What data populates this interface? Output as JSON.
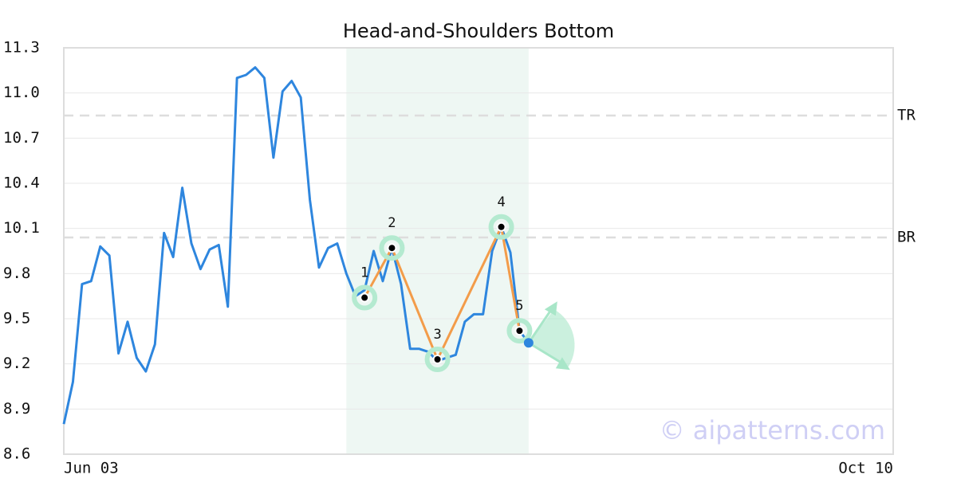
{
  "chart_data": {
    "type": "line",
    "title": "Head-and-Shoulders Bottom",
    "x": [
      0,
      1,
      2,
      3,
      4,
      5,
      6,
      7,
      8,
      9,
      10,
      11,
      12,
      13,
      14,
      15,
      16,
      17,
      18,
      19,
      20,
      21,
      22,
      23,
      24,
      25,
      26,
      27,
      28,
      29,
      30,
      31,
      32,
      33,
      34,
      35,
      36,
      37,
      38,
      39,
      40,
      41,
      42,
      43,
      44,
      45,
      46,
      47,
      48,
      49,
      50,
      51
    ],
    "series": [
      {
        "color": "#2e86de",
        "values": [
          8.8,
          9.08,
          9.73,
          9.75,
          9.98,
          9.92,
          9.27,
          9.48,
          9.24,
          9.15,
          9.33,
          10.07,
          9.91,
          10.37,
          10.0,
          9.83,
          9.96,
          9.99,
          9.58,
          11.1,
          11.12,
          11.17,
          11.1,
          10.57,
          11.01,
          11.08,
          10.97,
          10.29,
          9.84,
          9.97,
          10.0,
          9.8,
          9.65,
          9.69,
          9.95,
          9.75,
          9.97,
          9.73,
          9.3,
          9.3,
          9.28,
          9.22,
          9.24,
          9.26,
          9.48,
          9.53,
          9.53,
          9.95,
          10.11,
          9.94,
          9.42,
          9.34
        ]
      }
    ],
    "pattern": {
      "labels": [
        "1",
        "2",
        "3",
        "4",
        "5"
      ],
      "x": [
        33,
        36,
        41,
        48,
        50
      ],
      "values": [
        9.64,
        9.97,
        9.23,
        10.11,
        9.42
      ],
      "color": "#f39c4a"
    },
    "levels": [
      {
        "label": "TR",
        "value": 10.85
      },
      {
        "label": "BR",
        "value": 10.04
      }
    ],
    "highlight": {
      "x_start": 31,
      "x_end": 51,
      "color": "#eef7f3"
    },
    "xlim": [
      0,
      91
    ],
    "ylim": [
      8.6,
      11.3
    ],
    "xticks": [
      {
        "value": 0,
        "label": "Jun 03"
      },
      {
        "value": 91,
        "label": "Oct 10"
      }
    ],
    "yticks": [
      8.6,
      8.9,
      9.2,
      9.5,
      9.8,
      10.1,
      10.4,
      10.7,
      {
        "value": 11,
        "label": "11.0"
      },
      11.3
    ],
    "grid": true,
    "watermark": "© aipatterns.com"
  }
}
